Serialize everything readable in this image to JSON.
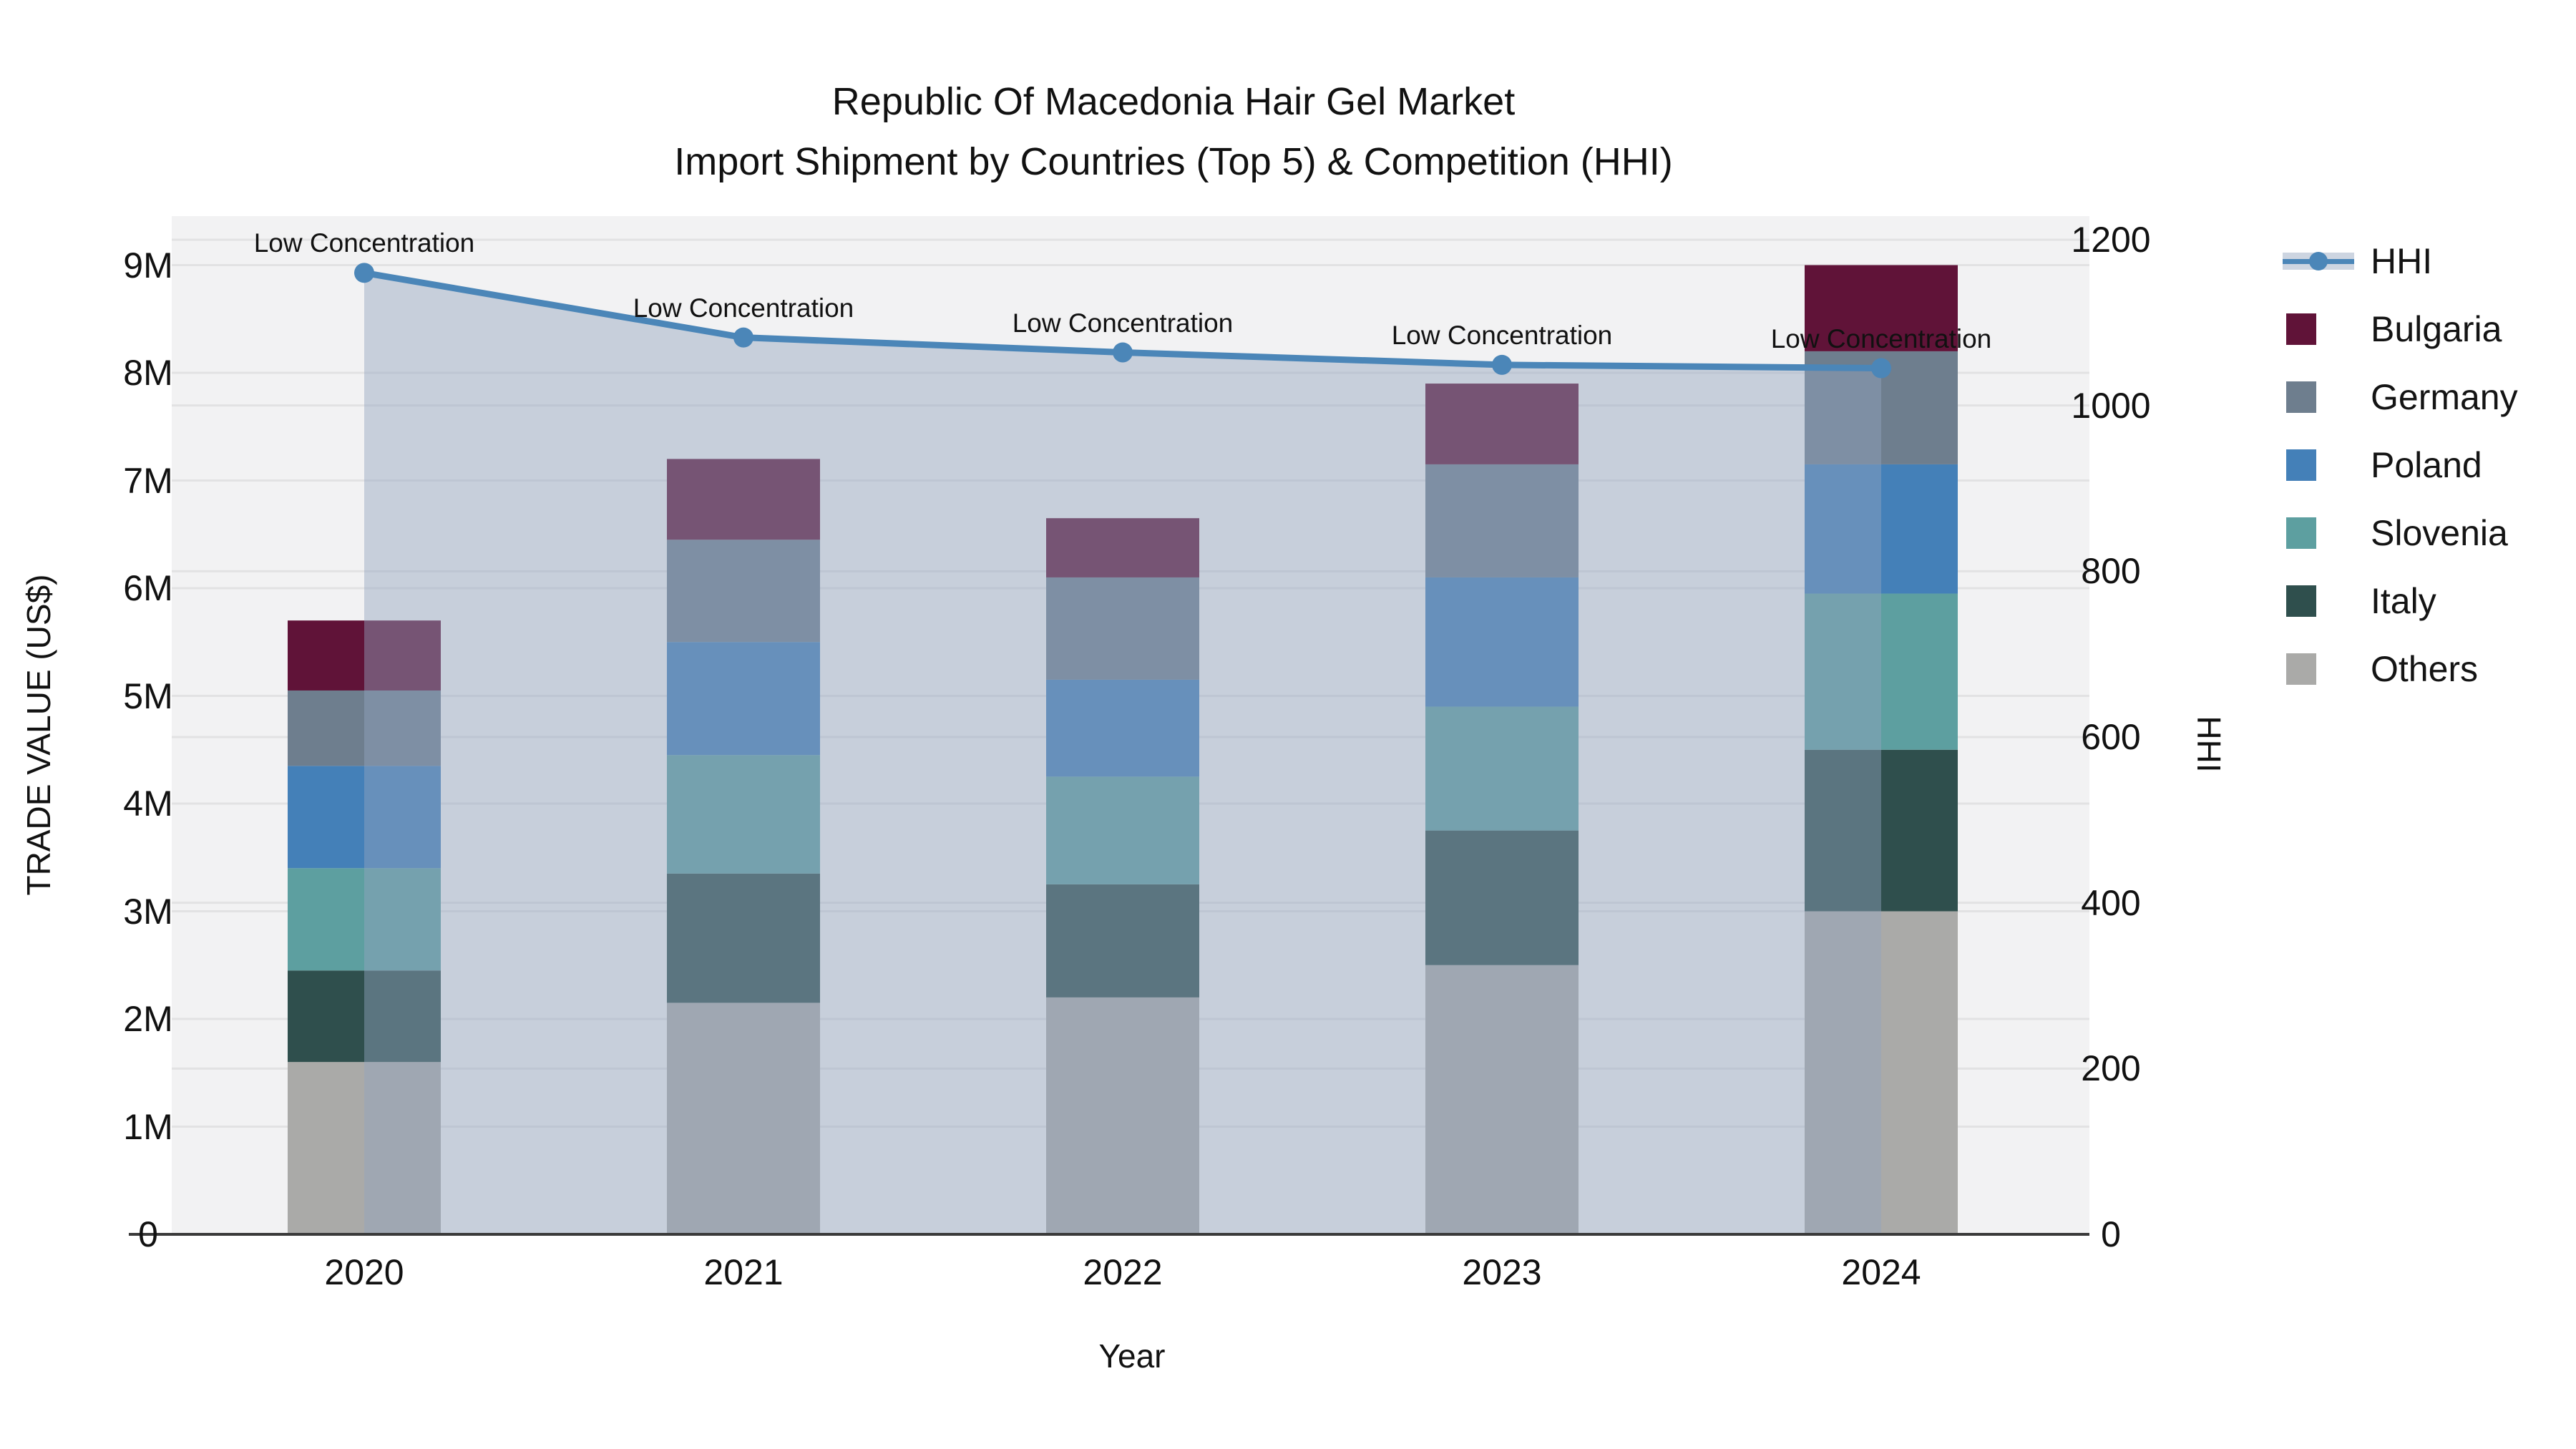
{
  "title": {
    "line1": "Republic Of Macedonia Hair Gel Market",
    "line2": "Import Shipment by Countries (Top 5) & Competition (HHI)"
  },
  "axes": {
    "y_left_title": "TRADE VALUE (US$)",
    "y_right_title": "HHI",
    "x_title": "Year",
    "y_left_ticks": [
      {
        "label": "0",
        "value": 0
      },
      {
        "label": "1M",
        "value": 1
      },
      {
        "label": "2M",
        "value": 2
      },
      {
        "label": "3M",
        "value": 3
      },
      {
        "label": "4M",
        "value": 4
      },
      {
        "label": "5M",
        "value": 5
      },
      {
        "label": "6M",
        "value": 6
      },
      {
        "label": "7M",
        "value": 7
      },
      {
        "label": "8M",
        "value": 8
      },
      {
        "label": "9M",
        "value": 9
      }
    ],
    "y_right_ticks": [
      {
        "label": "0",
        "value": 0
      },
      {
        "label": "200",
        "value": 200
      },
      {
        "label": "400",
        "value": 400
      },
      {
        "label": "600",
        "value": 600
      },
      {
        "label": "800",
        "value": 800
      },
      {
        "label": "1000",
        "value": 1000
      },
      {
        "label": "1200",
        "value": 1200
      }
    ]
  },
  "legend": {
    "items": [
      {
        "label": "HHI",
        "type": "line",
        "color": "#4b86b8"
      },
      {
        "label": "Bulgaria",
        "type": "swatch",
        "color": "#601338"
      },
      {
        "label": "Germany",
        "type": "swatch",
        "color": "#6e7e8e"
      },
      {
        "label": "Poland",
        "type": "swatch",
        "color": "#4480b8"
      },
      {
        "label": "Slovenia",
        "type": "swatch",
        "color": "#5d9fa0"
      },
      {
        "label": "Italy",
        "type": "swatch",
        "color": "#2f4f4d"
      },
      {
        "label": "Others",
        "type": "swatch",
        "color": "#aaaaa8"
      }
    ]
  },
  "chart_data": {
    "type": "bar",
    "subtype": "stacked-bars-with-line-overlay",
    "categories": [
      "2020",
      "2021",
      "2022",
      "2023",
      "2024"
    ],
    "value_unit": "millions of US$",
    "series": [
      {
        "name": "Others",
        "color": "#aaaaa8",
        "values": [
          1.6,
          2.15,
          2.2,
          2.5,
          3.0
        ]
      },
      {
        "name": "Italy",
        "color": "#2f4f4d",
        "values": [
          0.85,
          1.2,
          1.05,
          1.25,
          1.5
        ]
      },
      {
        "name": "Slovenia",
        "color": "#5d9fa0",
        "values": [
          0.95,
          1.1,
          1.0,
          1.15,
          1.45
        ]
      },
      {
        "name": "Poland",
        "color": "#4480b8",
        "values": [
          0.95,
          1.05,
          0.9,
          1.2,
          1.2
        ]
      },
      {
        "name": "Germany",
        "color": "#6e7e8e",
        "values": [
          0.7,
          0.95,
          0.95,
          1.05,
          1.05
        ]
      },
      {
        "name": "Bulgaria",
        "color": "#601338",
        "values": [
          0.65,
          0.75,
          0.55,
          0.75,
          0.8
        ]
      }
    ],
    "bar_totals": [
      5.7,
      7.2,
      6.65,
      7.9,
      9.0
    ],
    "line_series": {
      "name": "HHI",
      "axis": "right",
      "color": "#4b86b8",
      "area_fill": "#93a3be",
      "area_opacity": 0.45,
      "values": [
        1160,
        1082,
        1064,
        1049,
        1045
      ],
      "point_annotations": [
        "Low Concentration",
        "Low Concentration",
        "Low Concentration",
        "Low Concentration",
        "Low Concentration"
      ]
    },
    "xlabel": "Year",
    "ylabel_left": "TRADE VALUE (US$)",
    "ylabel_right": "HHI",
    "ylim_left_musd": [
      0,
      9.45
    ],
    "ylim_right_hhi": [
      0,
      1200
    ],
    "grid": true,
    "legend_position": "right",
    "colors": {
      "plot_background": "#f2f2f3",
      "gridline": "#e2e2e3",
      "axis_line": "#3a3a3a",
      "text": "#111111"
    }
  }
}
